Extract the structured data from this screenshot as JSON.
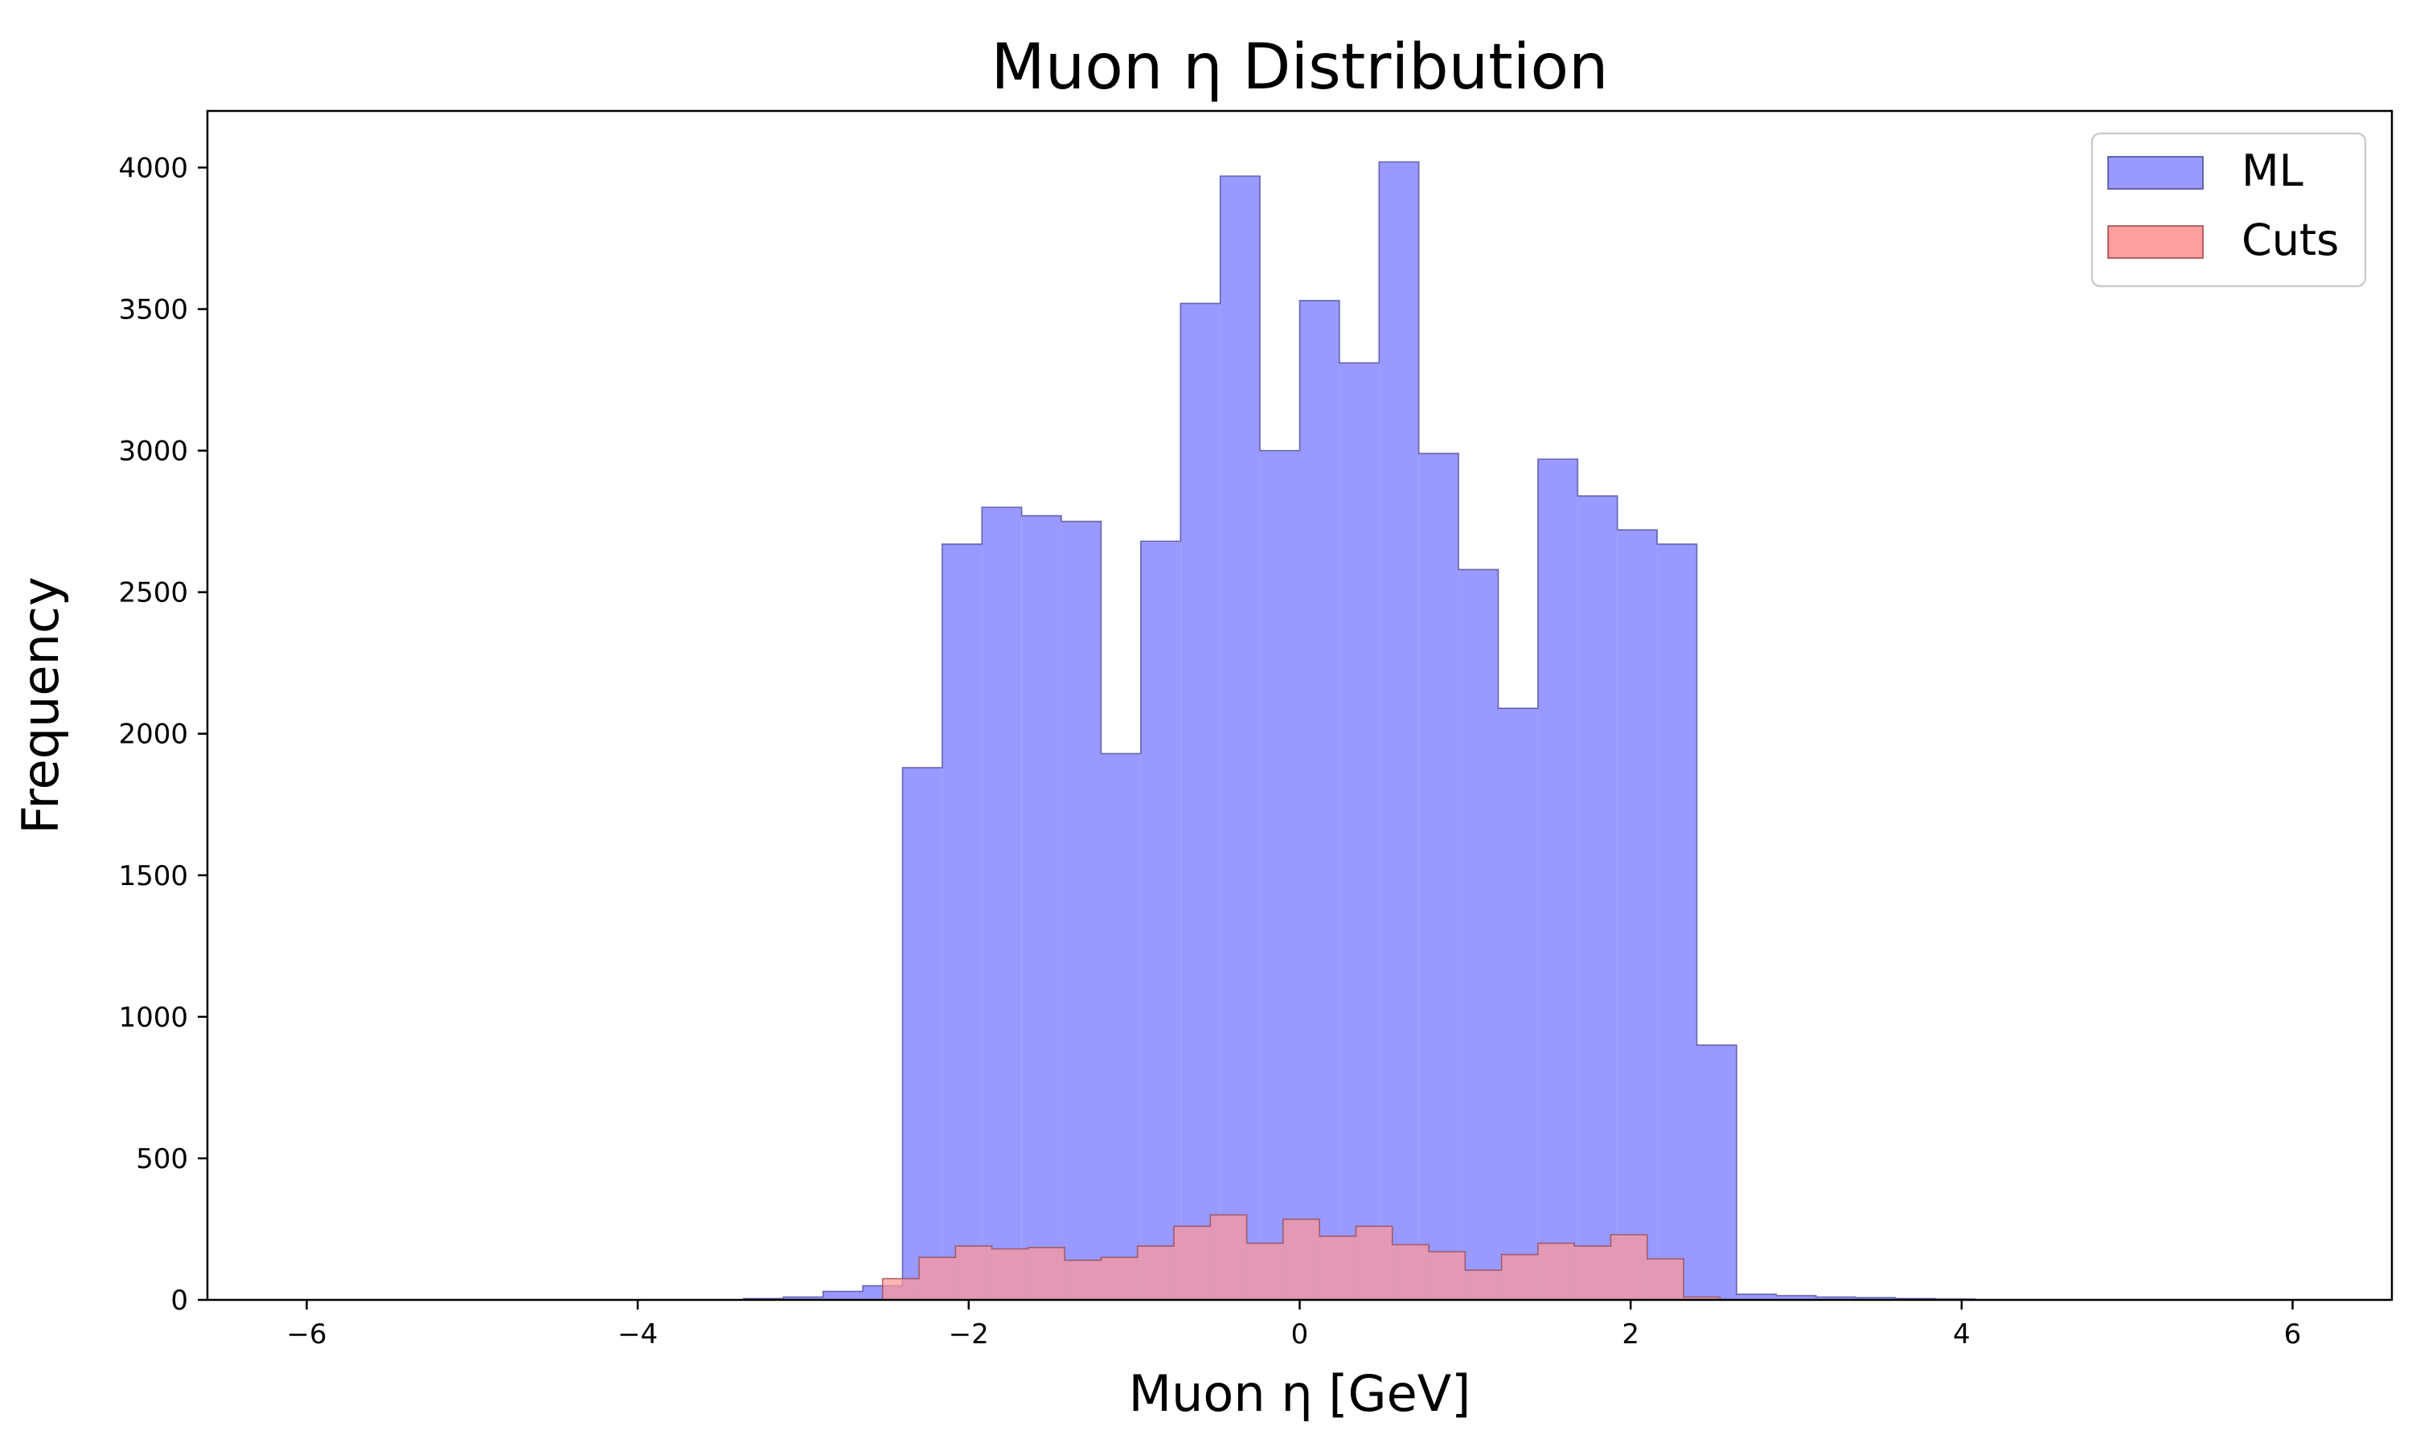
{
  "chart_data": {
    "type": "bar",
    "title": "Muon η  Distribution",
    "xlabel": "Muon η  [GeV]",
    "ylabel": "Frequency",
    "xlim": [
      -6.6,
      6.6
    ],
    "ylim": [
      0,
      4200
    ],
    "xticks": [
      -6,
      -4,
      -2,
      0,
      2,
      4,
      6
    ],
    "xtick_labels": [
      "−6",
      "−4",
      "−2",
      "0",
      "2",
      "4",
      "6"
    ],
    "yticks": [
      0,
      500,
      1000,
      1500,
      2000,
      2500,
      3000,
      3500,
      4000
    ],
    "ytick_labels": [
      "0",
      "500",
      "1000",
      "1500",
      "2000",
      "2500",
      "3000",
      "3500",
      "4000"
    ],
    "grid": false,
    "legend_position": "top-right",
    "series": [
      {
        "name": "ML",
        "color": "#9999ff",
        "edge_color": "#4d4d99",
        "bin_edges": [
          -6.0,
          -5.76,
          -5.52,
          -5.28,
          -5.04,
          -4.8,
          -4.56,
          -4.32,
          -4.08,
          -3.84,
          -3.6,
          -3.36,
          -3.12,
          -2.88,
          -2.64,
          -2.4,
          -2.16,
          -1.92,
          -1.68,
          -1.44,
          -1.2,
          -0.96,
          -0.72,
          -0.48,
          -0.24,
          0.0,
          0.24,
          0.48,
          0.72,
          0.96,
          1.2,
          1.44,
          1.68,
          1.92,
          2.16,
          2.4,
          2.64,
          2.88,
          3.12,
          3.36,
          3.6,
          3.84,
          4.08,
          4.32,
          4.56,
          4.8,
          5.04,
          5.28,
          5.52,
          5.76,
          6.0
        ],
        "values": [
          0,
          0,
          0,
          0,
          0,
          0,
          0,
          0,
          0,
          0,
          0,
          5,
          10,
          30,
          50,
          1880,
          2670,
          2800,
          2770,
          2750,
          1930,
          2680,
          3520,
          3970,
          3000,
          3530,
          3310,
          4020,
          2990,
          2580,
          2090,
          2970,
          2840,
          2720,
          2670,
          900,
          20,
          15,
          10,
          8,
          5,
          3,
          0,
          0,
          0,
          0,
          0,
          0,
          0,
          0
        ]
      },
      {
        "name": "Cuts",
        "color": "#ff9999",
        "edge_color": "#994d4d",
        "bin_edges": [
          -2.52,
          -2.3,
          -2.08,
          -1.86,
          -1.64,
          -1.42,
          -1.2,
          -0.98,
          -0.76,
          -0.54,
          -0.32,
          -0.1,
          0.12,
          0.34,
          0.56,
          0.78,
          1.0,
          1.22,
          1.44,
          1.66,
          1.88,
          2.1,
          2.32,
          2.54
        ],
        "values": [
          75,
          150,
          190,
          180,
          185,
          140,
          150,
          190,
          260,
          300,
          200,
          285,
          225,
          260,
          195,
          170,
          105,
          160,
          200,
          190,
          230,
          145,
          10
        ]
      }
    ]
  }
}
